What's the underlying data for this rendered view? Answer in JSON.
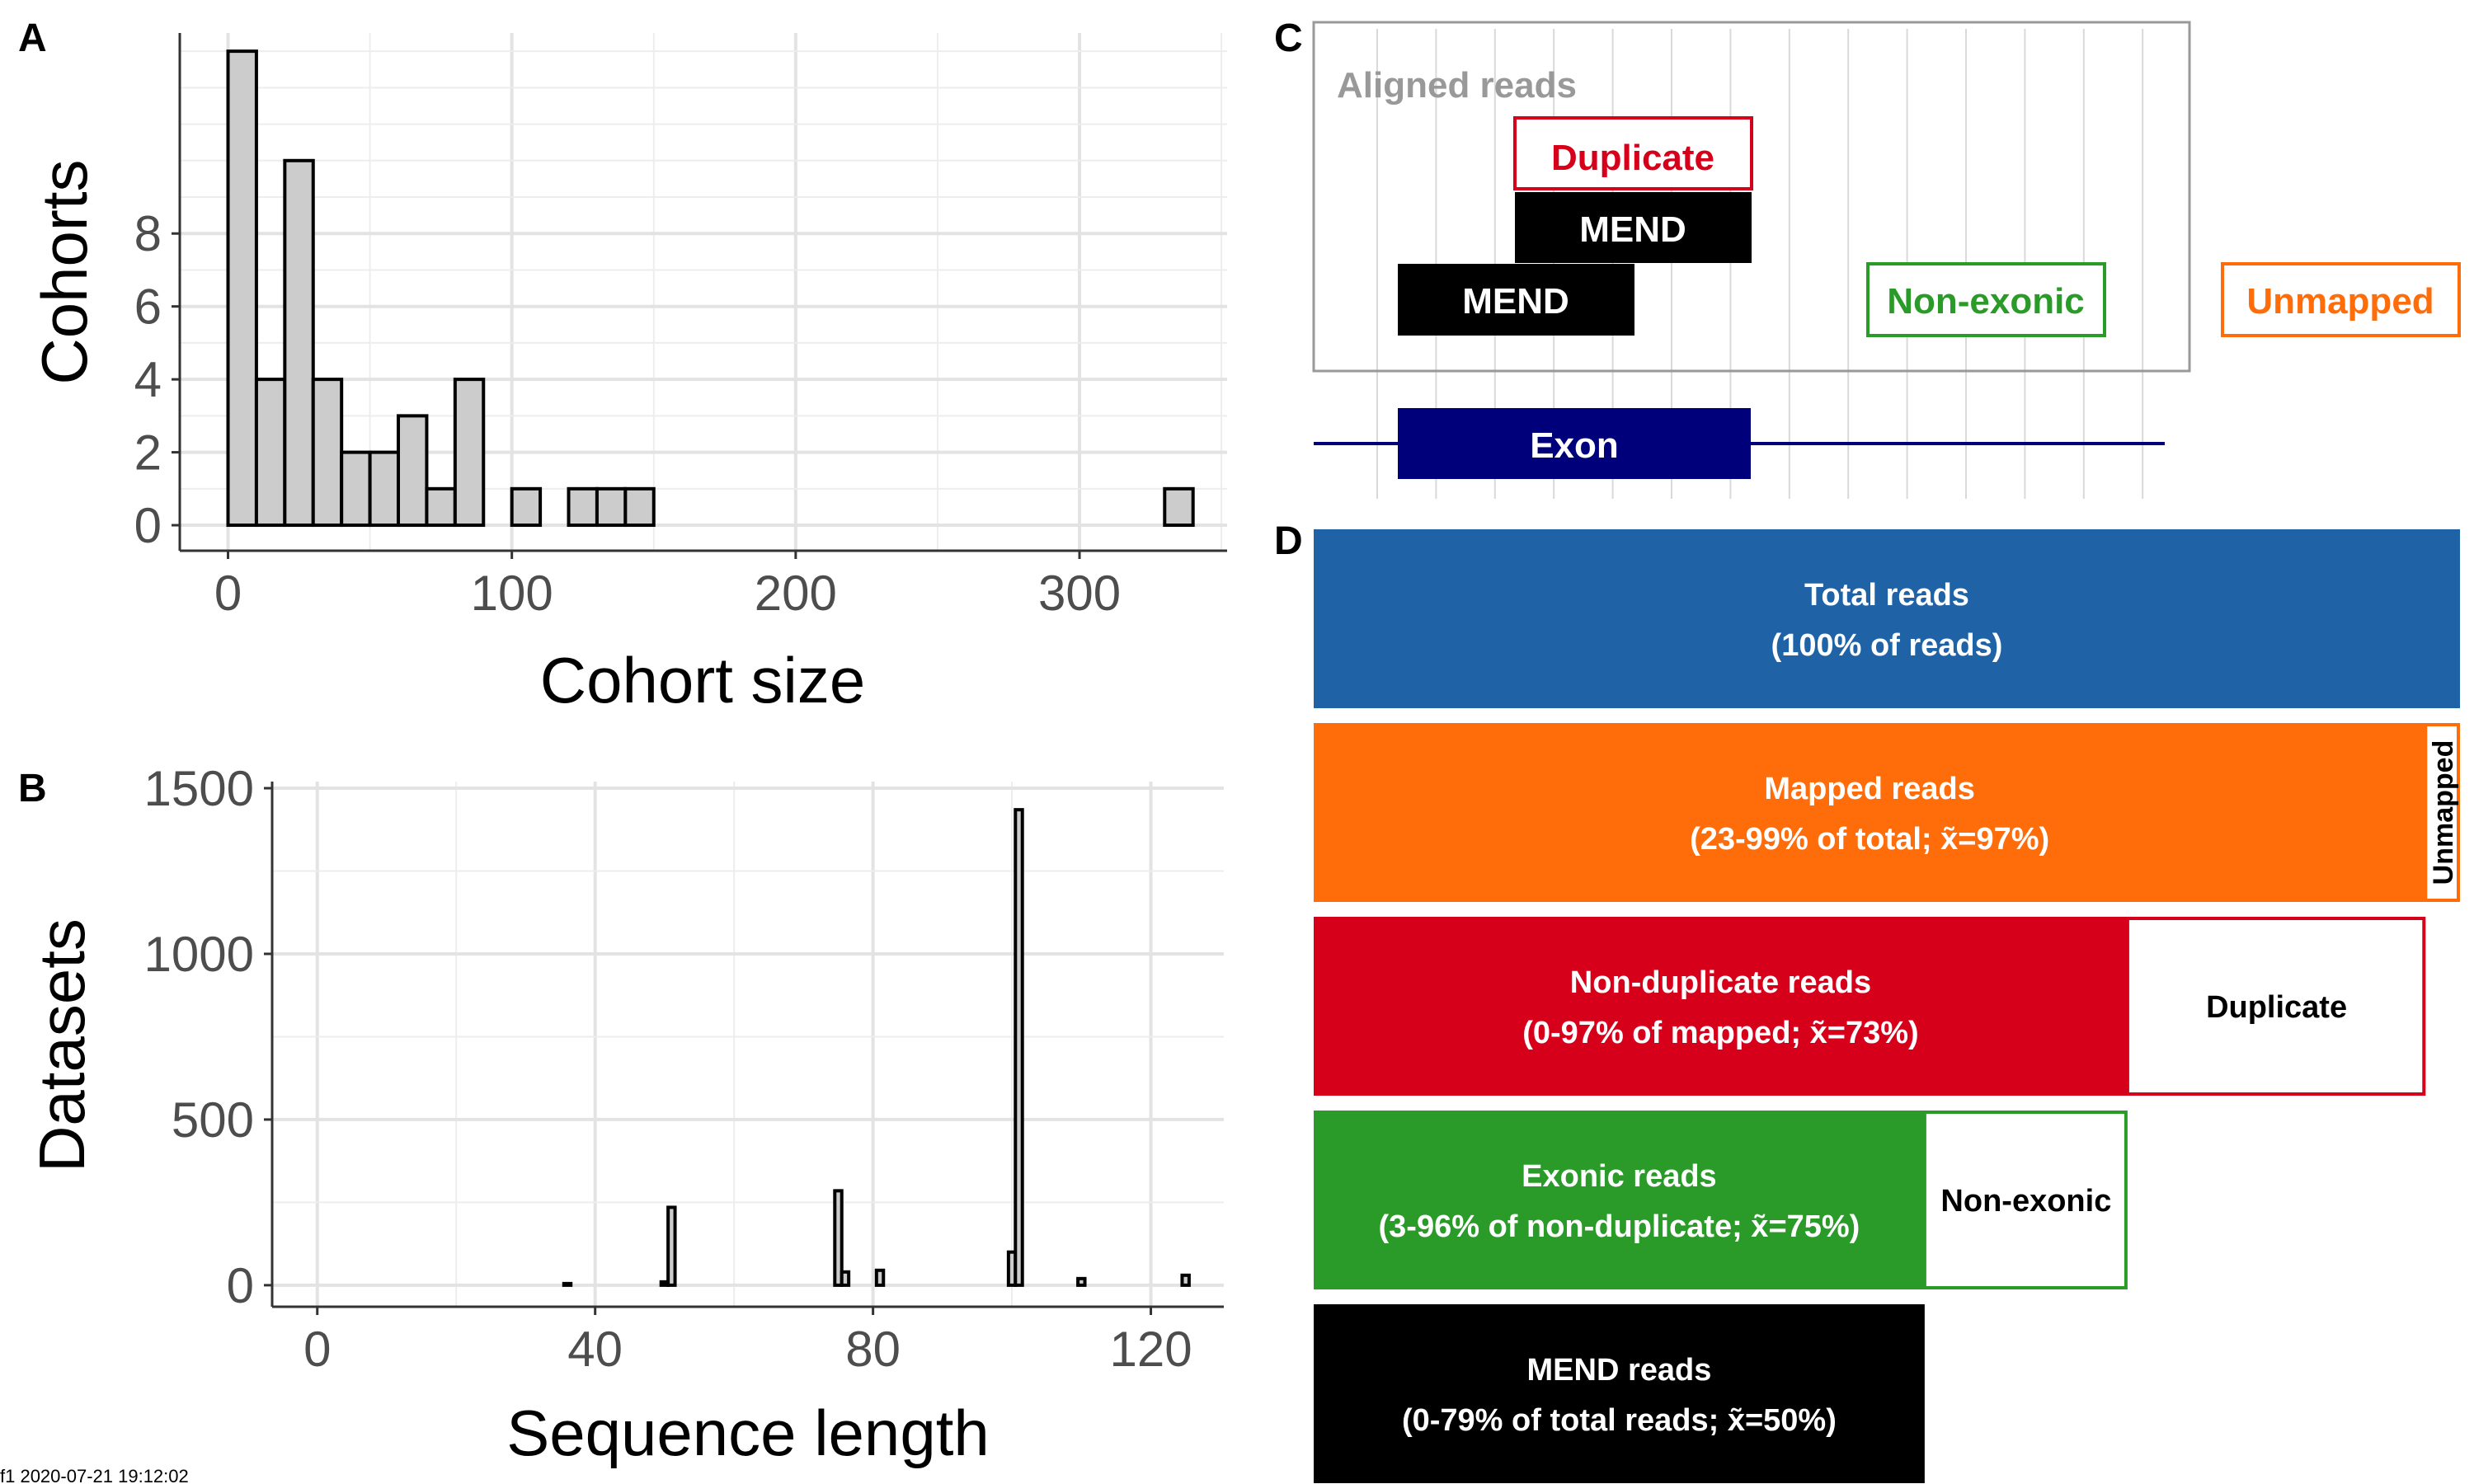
{
  "stamp": "f1 2020-07-21 19:12:02",
  "panels": {
    "a": "A",
    "b": "B",
    "c": "C",
    "d": "D"
  },
  "chart_data": [
    {
      "id": "A",
      "type": "bar",
      "histogram": true,
      "xlabel": "Cohort size",
      "ylabel": "Cohorts",
      "xlim": [
        -17,
        352
      ],
      "ylim": [
        -0.7,
        13.5
      ],
      "xticks": [
        0,
        100,
        200,
        300
      ],
      "yticks": [
        0,
        2,
        4,
        6,
        8
      ],
      "bin_width": 10,
      "bins": [
        {
          "x0": 0,
          "x1": 10,
          "count": 13
        },
        {
          "x0": 10,
          "x1": 20,
          "count": 4
        },
        {
          "x0": 20,
          "x1": 30,
          "count": 10
        },
        {
          "x0": 30,
          "x1": 40,
          "count": 4
        },
        {
          "x0": 40,
          "x1": 50,
          "count": 2
        },
        {
          "x0": 50,
          "x1": 60,
          "count": 2
        },
        {
          "x0": 60,
          "x1": 70,
          "count": 3
        },
        {
          "x0": 70,
          "x1": 80,
          "count": 1
        },
        {
          "x0": 80,
          "x1": 90,
          "count": 4
        },
        {
          "x0": 100,
          "x1": 110,
          "count": 1
        },
        {
          "x0": 120,
          "x1": 130,
          "count": 1
        },
        {
          "x0": 130,
          "x1": 140,
          "count": 1
        },
        {
          "x0": 140,
          "x1": 150,
          "count": 1
        },
        {
          "x0": 330,
          "x1": 340,
          "count": 1
        }
      ],
      "fill": "#cccccc",
      "grid": true
    },
    {
      "id": "B",
      "type": "bar",
      "histogram": true,
      "xlabel": "Sequence length",
      "ylabel": "Datasets",
      "xlim": [
        -6.5,
        130.5
      ],
      "ylim": [
        -65,
        1520
      ],
      "xticks": [
        0,
        40,
        80,
        120
      ],
      "yticks": [
        0,
        500,
        1000,
        1500
      ],
      "bins": [
        {
          "x0": 35.5,
          "x1": 36.5,
          "count": 5
        },
        {
          "x0": 49.5,
          "x1": 50.5,
          "count": 10
        },
        {
          "x0": 50.5,
          "x1": 51.5,
          "count": 235
        },
        {
          "x0": 74.5,
          "x1": 75.5,
          "count": 285
        },
        {
          "x0": 75.5,
          "x1": 76.5,
          "count": 40
        },
        {
          "x0": 80.5,
          "x1": 81.5,
          "count": 45
        },
        {
          "x0": 99.5,
          "x1": 100.5,
          "count": 100
        },
        {
          "x0": 100.5,
          "x1": 101.5,
          "count": 1435
        },
        {
          "x0": 109.5,
          "x1": 110.5,
          "count": 20
        },
        {
          "x0": 124.5,
          "x1": 125.5,
          "count": 30
        }
      ],
      "fill": "#cccccc",
      "grid": true
    },
    {
      "id": "D",
      "type": "bar",
      "orientation": "horizontal",
      "bars": [
        {
          "name": "Total reads",
          "detail": "(100% of reads)",
          "fraction": 1.0,
          "color": "#1f63a6",
          "remainder_label": "",
          "remainder_end": 1.0
        },
        {
          "name": "Mapped reads",
          "detail": "(23-99% of total; x̃=97%)",
          "fraction": 0.97,
          "color": "#ff6c0a",
          "remainder_label": "Unmapped",
          "remainder_end": 1.0
        },
        {
          "name": "Non-duplicate reads",
          "detail": "(0-97% of mapped; x̃=73%)",
          "fraction": 0.71,
          "color": "#d7001a",
          "remainder_label": "Duplicate",
          "remainder_end": 0.97
        },
        {
          "name": "Exonic reads",
          "detail": "(3-96% of non-duplicate; x̃=75%)",
          "fraction": 0.533,
          "color": "#2a9a28",
          "remainder_label": "Non-exonic",
          "remainder_end": 0.71
        },
        {
          "name": "MEND reads",
          "detail": "(0-79% of total reads; x̃=50%)",
          "fraction": 0.533,
          "color": "#000000",
          "remainder_label": "",
          "remainder_end": 0.533
        }
      ]
    }
  ],
  "diagram": {
    "aligned_reads_label": "Aligned reads",
    "duplicate_label": "Duplicate",
    "mend_label_1": "MEND",
    "mend_label_2": "MEND",
    "non_exonic_label": "Non-exonic",
    "unmapped_label": "Unmapped",
    "exon_label": "Exon",
    "colors": {
      "aligned": "#999999",
      "duplicate": "#d7001a",
      "non_exonic": "#2a9a28",
      "unmapped": "#ff6c0a",
      "exon": "#00007a",
      "mend": "#000000"
    }
  }
}
